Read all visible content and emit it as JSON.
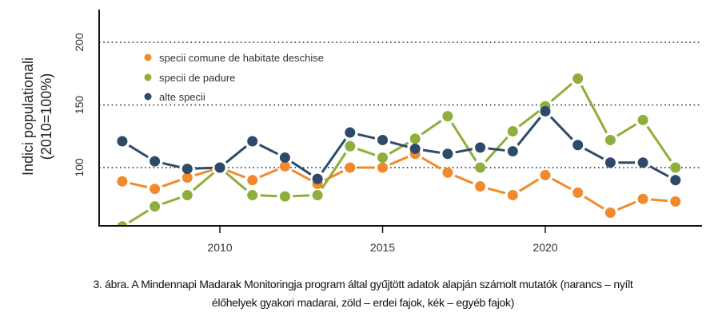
{
  "chart_data": {
    "type": "line",
    "title": "",
    "xlabel": "",
    "ylabel_lines": [
      "Indici populationali",
      "(2010=100%)"
    ],
    "x": [
      2007,
      2008,
      2009,
      2010,
      2011,
      2012,
      2013,
      2014,
      2015,
      2016,
      2017,
      2018,
      2019,
      2020,
      2021,
      2022,
      2023,
      2024
    ],
    "xlim": [
      2005.8,
      2025.0
    ],
    "ylim": [
      52,
      225
    ],
    "x_ticks": [
      2010,
      2015,
      2020
    ],
    "y_ticks": [
      100,
      150,
      200
    ],
    "gridlines": [
      100,
      150,
      200
    ],
    "legend_position": "top-left",
    "series": [
      {
        "name": "specii comune de habitate deschise",
        "color": "#f08a2c",
        "values": [
          89,
          83,
          92,
          100,
          90,
          101,
          87,
          100,
          100,
          111,
          96,
          85,
          78,
          94,
          80,
          64,
          75,
          73
        ]
      },
      {
        "name": "specii de padure",
        "color": "#8fae3b",
        "values": [
          53,
          69,
          78,
          100,
          78,
          77,
          78,
          117,
          108,
          123,
          141,
          100,
          129,
          149,
          171,
          122,
          138,
          100
        ]
      },
      {
        "name": "alte specii",
        "color": "#2e4a6b",
        "values": [
          121,
          105,
          99,
          100,
          121,
          108,
          91,
          128,
          122,
          115,
          111,
          116,
          113,
          145,
          118,
          104,
          104,
          90
        ]
      }
    ]
  },
  "caption": {
    "line1": "3. ábra. A Mindennapi Madarak Monitoringja  program által gyűjtött adatok alapján számolt mutatók (narancs – nyílt",
    "line2": "élőhelyek  gyakori madarai,  zöld – erdei fajok, kék – egyéb fajok)"
  }
}
